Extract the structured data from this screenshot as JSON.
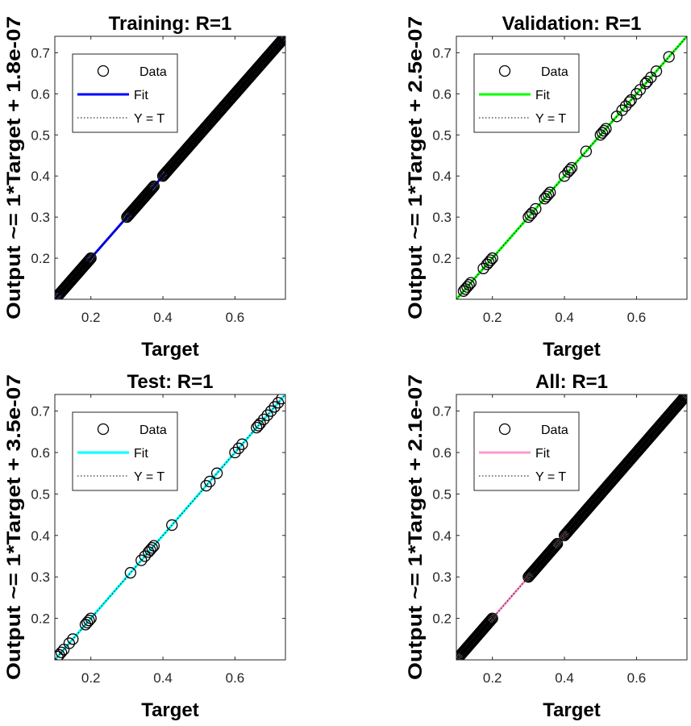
{
  "chart_data": [
    {
      "type": "scatter",
      "title": "Training: R=1",
      "xlabel": "Target",
      "ylabel": "Output ~= 1*Target + 1.8e-07",
      "xlim": [
        0.1,
        0.74
      ],
      "ylim": [
        0.1,
        0.74
      ],
      "xticks": [
        "0.2",
        "0.4",
        "0.6"
      ],
      "yticks": [
        "0.2",
        "0.3",
        "0.4",
        "0.5",
        "0.6",
        "0.7"
      ],
      "fit_color": "#0000ff",
      "legend": {
        "position": "top-left",
        "entries": [
          "Data",
          "Fit",
          "Y = T"
        ]
      },
      "data_points": {
        "segments": [
          [
            0.105,
            0.2
          ],
          [
            0.3,
            0.375
          ],
          [
            0.4,
            0.74
          ]
        ],
        "extra": [
          0.405,
          0.41
        ]
      }
    },
    {
      "type": "scatter",
      "title": "Validation: R=1",
      "xlabel": "Target",
      "ylabel": "Output ~= 1*Target + 2.5e-07",
      "xlim": [
        0.1,
        0.74
      ],
      "ylim": [
        0.1,
        0.74
      ],
      "xticks": [
        "0.2",
        "0.4",
        "0.6"
      ],
      "yticks": [
        "0.2",
        "0.3",
        "0.4",
        "0.5",
        "0.6",
        "0.7"
      ],
      "fit_color": "#00ff00",
      "legend": {
        "position": "top-left",
        "entries": [
          "Data",
          "Fit",
          "Y = T"
        ]
      },
      "data_points": {
        "values": [
          0.12,
          0.125,
          0.13,
          0.135,
          0.14,
          0.175,
          0.185,
          0.19,
          0.195,
          0.2,
          0.3,
          0.305,
          0.31,
          0.32,
          0.345,
          0.35,
          0.355,
          0.36,
          0.4,
          0.41,
          0.415,
          0.42,
          0.46,
          0.5,
          0.505,
          0.51,
          0.515,
          0.545,
          0.56,
          0.57,
          0.58,
          0.585,
          0.6,
          0.61,
          0.625,
          0.63,
          0.64,
          0.655,
          0.69
        ]
      }
    },
    {
      "type": "scatter",
      "title": "Test: R=1",
      "xlabel": "Target",
      "ylabel": "Output ~= 1*Target + 3.5e-07",
      "xlim": [
        0.1,
        0.74
      ],
      "ylim": [
        0.1,
        0.74
      ],
      "xticks": [
        "0.2",
        "0.4",
        "0.6"
      ],
      "yticks": [
        "0.2",
        "0.3",
        "0.4",
        "0.5",
        "0.6",
        "0.7"
      ],
      "fit_color": "#00ffff",
      "legend": {
        "position": "top-left",
        "entries": [
          "Data",
          "Fit",
          "Y = T"
        ]
      },
      "data_points": {
        "values": [
          0.108,
          0.112,
          0.118,
          0.125,
          0.14,
          0.15,
          0.185,
          0.19,
          0.195,
          0.2,
          0.31,
          0.34,
          0.35,
          0.36,
          0.365,
          0.37,
          0.375,
          0.425,
          0.52,
          0.53,
          0.55,
          0.6,
          0.61,
          0.62,
          0.66,
          0.665,
          0.67,
          0.68,
          0.69,
          0.7,
          0.71,
          0.72,
          0.73
        ]
      }
    },
    {
      "type": "scatter",
      "title": "All: R=1",
      "xlabel": "Target",
      "ylabel": "Output ~= 1*Target + 2.1e-07",
      "xlim": [
        0.1,
        0.74
      ],
      "ylim": [
        0.1,
        0.74
      ],
      "xticks": [
        "0.2",
        "0.4",
        "0.6"
      ],
      "yticks": [
        "0.2",
        "0.3",
        "0.4",
        "0.5",
        "0.6",
        "0.7"
      ],
      "fit_color": "#ff99cc",
      "legend": {
        "position": "top-left",
        "entries": [
          "Data",
          "Fit",
          "Y = T"
        ]
      },
      "data_points": {
        "segments": [
          [
            0.105,
            0.2
          ],
          [
            0.3,
            0.38
          ],
          [
            0.4,
            0.74
          ]
        ]
      }
    }
  ]
}
